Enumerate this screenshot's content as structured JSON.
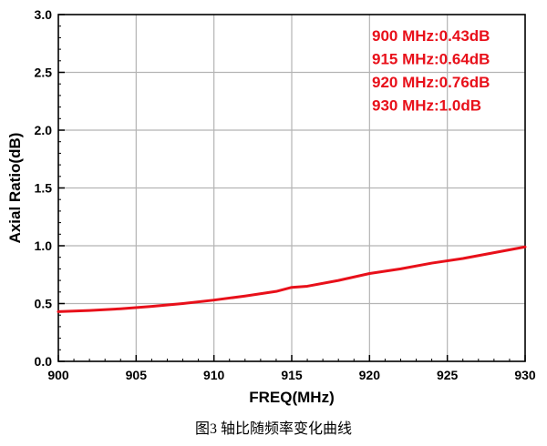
{
  "chart_data": {
    "type": "line",
    "xlabel": "FREQ(MHz)",
    "ylabel": "Axial Ratio(dB)",
    "xlim": [
      900,
      930
    ],
    "ylim": [
      0.0,
      3.0
    ],
    "x_ticks": [
      "900",
      "905",
      "910",
      "915",
      "920",
      "925",
      "930"
    ],
    "y_ticks": [
      "0.0",
      "0.5",
      "1.0",
      "1.5",
      "2.0",
      "2.5",
      "3.0"
    ],
    "grid": true,
    "series": [
      {
        "color": "#e8101a",
        "x": [
          900,
          902,
          904,
          906,
          908,
          910,
          912,
          914,
          915,
          916,
          918,
          920,
          922,
          924,
          926,
          928,
          930
        ],
        "y": [
          0.43,
          0.44,
          0.455,
          0.475,
          0.5,
          0.53,
          0.565,
          0.605,
          0.64,
          0.65,
          0.7,
          0.76,
          0.8,
          0.85,
          0.89,
          0.94,
          0.99
        ]
      }
    ],
    "annotations": [
      "900 MHz:0.43dB",
      "915 MHz:0.64dB",
      "920 MHz:0.76dB",
      "930 MHz:1.0dB"
    ]
  },
  "caption": "图3 轴比随频率变化曲线"
}
